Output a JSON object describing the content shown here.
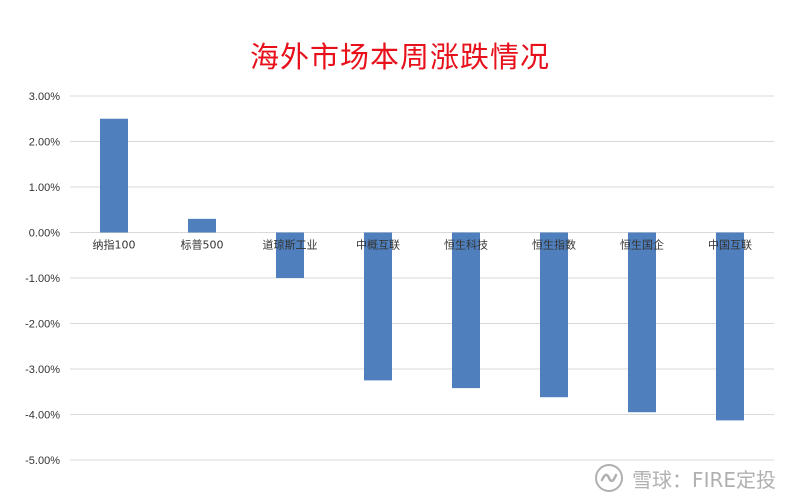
{
  "chart_data": {
    "type": "bar",
    "title": "海外市场本周涨跌情况",
    "categories": [
      "纳指100",
      "标普500",
      "道琼斯工业",
      "中概互联",
      "恒生科技",
      "恒生指数",
      "恒生国企",
      "中国互联"
    ],
    "values": [
      2.5,
      0.3,
      -1.0,
      -3.25,
      -3.42,
      -3.62,
      -3.95,
      -4.13
    ],
    "ylim": [
      -5,
      3
    ],
    "yticks": [
      "3.00%",
      "2.00%",
      "1.00%",
      "0.00%",
      "-1.00%",
      "-2.00%",
      "-3.00%",
      "-4.00%",
      "-5.00%"
    ],
    "ytick_values": [
      3,
      2,
      1,
      0,
      -1,
      -2,
      -3,
      -4,
      -5
    ],
    "bar_color": "#4f7fbd",
    "grid_color": "#d9d9d9",
    "grid": true,
    "legend": "none"
  },
  "watermark": {
    "text": "雪球：FIRE定投"
  }
}
